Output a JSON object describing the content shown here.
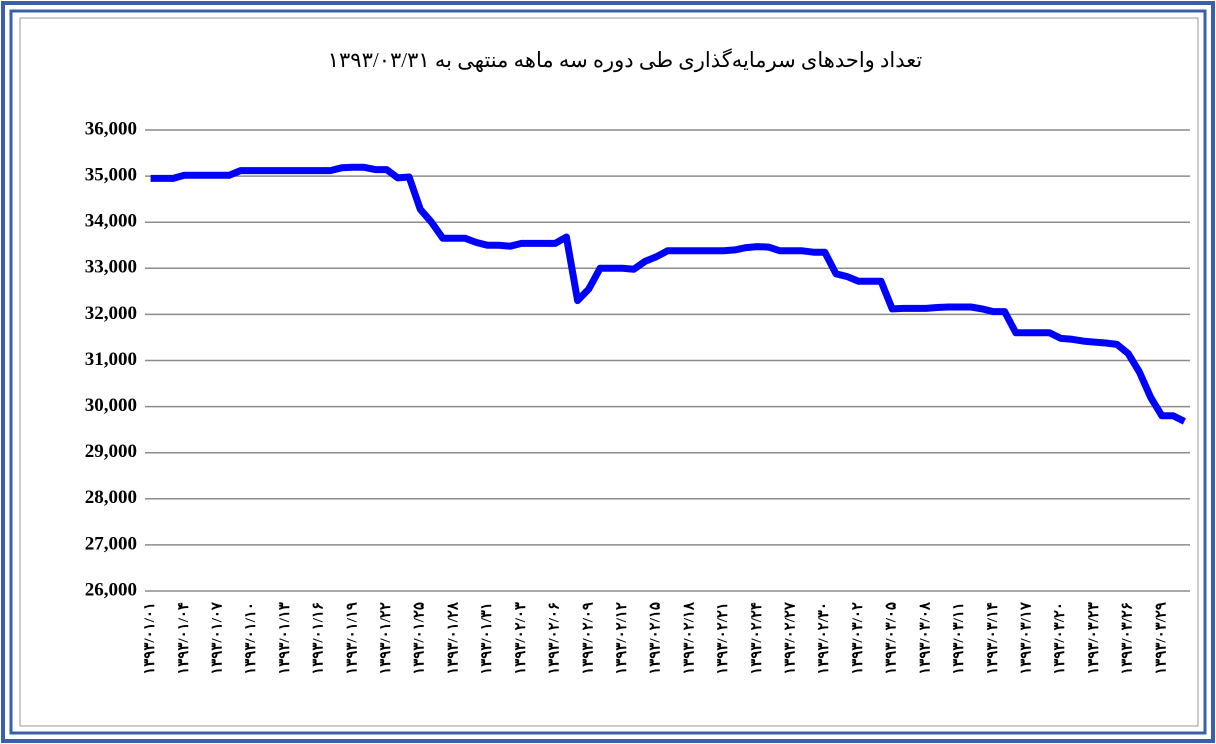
{
  "chart_data": {
    "type": "line",
    "title": "تعداد واحدهای سرمایه‌گذاری طی دوره سه ماهه منتهی به ۱۳۹۳/۰۳/۳۱",
    "categories": [
      "۱۳۹۳/۰۱/۰۱",
      null,
      null,
      "۱۳۹۳/۰۱/۰۴",
      null,
      null,
      "۱۳۹۳/۰۱/۰۷",
      null,
      null,
      "۱۳۹۳/۰۱/۱۰",
      null,
      null,
      "۱۳۹۳/۰۱/۱۳",
      null,
      null,
      "۱۳۹۳/۰۱/۱۶",
      null,
      null,
      "۱۳۹۳/۰۱/۱۹",
      null,
      null,
      "۱۳۹۳/۰۱/۲۲",
      null,
      null,
      "۱۳۹۳/۰۱/۲۵",
      null,
      null,
      "۱۳۹۳/۰۱/۲۸",
      null,
      null,
      "۱۳۹۳/۰۱/۳۱",
      null,
      null,
      "۱۳۹۳/۰۲/۰۳",
      null,
      null,
      "۱۳۹۳/۰۲/۰۶",
      null,
      null,
      "۱۳۹۳/۰۲/۰۹",
      null,
      null,
      "۱۳۹۳/۰۲/۱۲",
      null,
      null,
      "۱۳۹۳/۰۲/۱۵",
      null,
      null,
      "۱۳۹۳/۰۲/۱۸",
      null,
      null,
      "۱۳۹۳/۰۲/۲۱",
      null,
      null,
      "۱۳۹۳/۰۲/۲۴",
      null,
      null,
      "۱۳۹۳/۰۲/۲۷",
      null,
      null,
      "۱۳۹۳/۰۲/۳۰",
      null,
      null,
      "۱۳۹۳/۰۳/۰۲",
      null,
      null,
      "۱۳۹۳/۰۳/۰۵",
      null,
      null,
      "۱۳۹۳/۰۳/۰۸",
      null,
      null,
      "۱۳۹۳/۰۳/۱۱",
      null,
      null,
      "۱۳۹۳/۰۳/۱۴",
      null,
      null,
      "۱۳۹۳/۰۳/۱۷",
      null,
      null,
      "۱۳۹۳/۰۳/۲۰",
      null,
      null,
      "۱۳۹۳/۰۳/۲۳",
      null,
      null,
      "۱۳۹۳/۰۳/۲۶",
      null,
      null,
      "۱۳۹۳/۰۳/۲۹",
      null,
      null
    ],
    "values": [
      34950,
      34950,
      34950,
      35020,
      35020,
      35020,
      35020,
      35020,
      35120,
      35120,
      35120,
      35120,
      35120,
      35120,
      35120,
      35120,
      35120,
      35180,
      35190,
      35190,
      35140,
      35140,
      34960,
      34980,
      34280,
      34000,
      33650,
      33650,
      33650,
      33560,
      33500,
      33500,
      33480,
      33540,
      33540,
      33540,
      33540,
      33680,
      32300,
      32550,
      33000,
      33000,
      33000,
      32980,
      33150,
      33250,
      33380,
      33380,
      33380,
      33380,
      33380,
      33380,
      33400,
      33450,
      33470,
      33460,
      33380,
      33380,
      33380,
      33350,
      33350,
      32880,
      32820,
      32720,
      32720,
      32720,
      32120,
      32130,
      32130,
      32130,
      32150,
      32160,
      32160,
      32160,
      32120,
      32060,
      32060,
      31600,
      31600,
      31600,
      31600,
      31480,
      31460,
      31420,
      31400,
      31380,
      31350,
      31150,
      30750,
      30200,
      29800,
      29800,
      29680
    ],
    "color": "#0000ff",
    "ylim": [
      26000,
      36000
    ],
    "yticks": [
      {
        "value": 26000,
        "label": "26,000"
      },
      {
        "value": 27000,
        "label": "27,000"
      },
      {
        "value": 28000,
        "label": "28,000"
      },
      {
        "value": 29000,
        "label": "29,000"
      },
      {
        "value": 30000,
        "label": "30,000"
      },
      {
        "value": 31000,
        "label": "31,000"
      },
      {
        "value": 32000,
        "label": "32,000"
      },
      {
        "value": 33000,
        "label": "33,000"
      },
      {
        "value": 34000,
        "label": "34,000"
      },
      {
        "value": 35000,
        "label": "35,000"
      },
      {
        "value": 36000,
        "label": "36,000"
      }
    ],
    "grid": true
  }
}
